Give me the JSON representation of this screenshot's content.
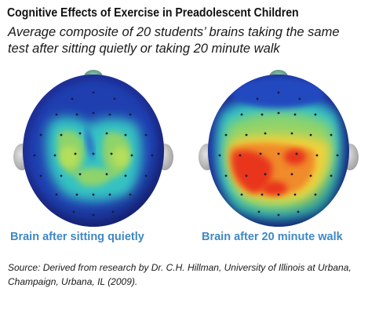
{
  "title": "Cognitive Effects of Exercise in Preadolescent Children",
  "subtitle": {
    "line1": "Average composite of 20 students’ brains taking the same",
    "line2": "test after sitting quietly or taking 20 minute walk"
  },
  "panels": [
    {
      "caption": "Brain after sitting quietly",
      "activity": "low"
    },
    {
      "caption": "Brain after 20 minute walk",
      "activity": "high"
    }
  ],
  "source": {
    "line1": "Source: Derived from research by Dr. C.H. Hillman, University of Illinois at Urbana,",
    "line2": "Champaign, Urbana, IL (2009)."
  },
  "colors": {
    "caption": "#3f88c5",
    "low_activity": "#1f3fb0",
    "mid_activity": "#36c2c2",
    "high_activity": "#e8341c"
  }
}
